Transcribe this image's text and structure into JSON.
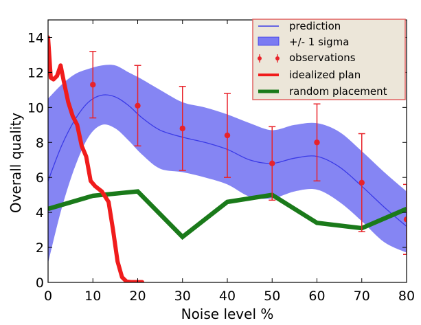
{
  "chart_data": {
    "type": "line",
    "xlabel": "Noise level %",
    "ylabel": "Overall quality",
    "xlim": [
      0,
      80
    ],
    "ylim": [
      0,
      15
    ],
    "x_ticks": [
      0,
      10,
      20,
      30,
      40,
      50,
      60,
      70,
      80
    ],
    "y_ticks": [
      0,
      2,
      4,
      6,
      8,
      10,
      12,
      14
    ],
    "x_tick_labels": [
      "0",
      "10",
      "20",
      "30",
      "40",
      "50",
      "60",
      "70",
      "80"
    ],
    "y_tick_labels": [
      "0",
      "2",
      "4",
      "6",
      "8",
      "10",
      "12",
      "14"
    ],
    "grid": false,
    "legend_position": "top-right",
    "legend": {
      "prediction": "prediction",
      "sigma": "+/- 1 sigma",
      "observations": "observations",
      "idealized": "idealized plan",
      "random": "random placement"
    },
    "colors": {
      "prediction": "#3a3ae6",
      "sigma_fill": "#7b7bf2",
      "observations": "#e8232a",
      "idealized": "#f01c1c",
      "random": "#1a7a1a",
      "legend_bg": "#ece6d9",
      "legend_border": "#e06060"
    },
    "series": [
      {
        "name": "prediction",
        "x": [
          0,
          3,
          6,
          9,
          12,
          15,
          18,
          21,
          25,
          30,
          35,
          40,
          45,
          50,
          55,
          60,
          65,
          70,
          75,
          80
        ],
        "values": [
          5.8,
          7.8,
          9.3,
          10.3,
          10.7,
          10.6,
          10.1,
          9.4,
          8.7,
          8.3,
          8.0,
          7.6,
          7.0,
          6.8,
          7.1,
          7.2,
          6.6,
          5.5,
          4.3,
          3.2
        ]
      },
      {
        "name": "+/- 1 sigma",
        "x": [
          0,
          3,
          6,
          9,
          12,
          15,
          18,
          21,
          25,
          30,
          35,
          40,
          45,
          50,
          55,
          60,
          65,
          70,
          75,
          80
        ],
        "upper": [
          10.5,
          11.3,
          11.9,
          12.2,
          12.4,
          12.4,
          12.0,
          11.6,
          11.0,
          10.3,
          10.0,
          9.6,
          9.1,
          8.7,
          9.0,
          9.1,
          8.6,
          7.5,
          6.3,
          5.2
        ],
        "lower": [
          1.1,
          4.2,
          6.6,
          8.3,
          9.0,
          8.8,
          8.1,
          7.3,
          6.5,
          6.3,
          6.0,
          5.6,
          4.9,
          4.8,
          5.2,
          5.3,
          4.6,
          3.5,
          2.3,
          1.7
        ]
      },
      {
        "name": "observations",
        "x": [
          10,
          20,
          30,
          40,
          50,
          60,
          70,
          80
        ],
        "values": [
          11.3,
          10.1,
          8.8,
          8.4,
          6.8,
          8.0,
          5.7,
          3.6
        ],
        "err": [
          1.9,
          2.3,
          2.4,
          2.4,
          2.1,
          2.2,
          2.8,
          2.0
        ]
      },
      {
        "name": "idealized plan",
        "x": [
          0,
          0.6,
          1.2,
          2.0,
          2.8,
          3.5,
          4.5,
          5.5,
          6.5,
          7.5,
          8.5,
          9.5,
          10.5,
          12.0,
          13.5,
          14.5,
          15.5,
          16.5,
          17.5,
          18.5,
          20,
          21
        ],
        "values": [
          14.0,
          11.7,
          11.6,
          11.8,
          12.4,
          11.5,
          10.3,
          9.5,
          9.0,
          7.8,
          7.2,
          5.8,
          5.5,
          5.2,
          4.6,
          3.0,
          1.2,
          0.3,
          0.05,
          0.02,
          0.02,
          0.02
        ]
      },
      {
        "name": "random placement",
        "x": [
          0,
          10,
          20,
          30,
          40,
          50,
          60,
          70,
          80
        ],
        "values": [
          4.2,
          4.95,
          5.2,
          2.6,
          4.6,
          5.0,
          3.4,
          3.1,
          4.2
        ]
      }
    ]
  }
}
